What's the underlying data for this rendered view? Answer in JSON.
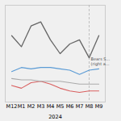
{
  "chart_data": {
    "type": "line",
    "xlabel": "2024",
    "categories": [
      "M12",
      "M1",
      "M2",
      "M3",
      "M4",
      "M5",
      "M6",
      "M7",
      "M8",
      "M9"
    ],
    "series": [
      {
        "color": "#666666",
        "values": [
          68,
          60,
          75,
          78,
          65,
          55,
          62,
          65,
          52,
          68
        ]
      },
      {
        "color": "#5b9bd5",
        "values": [
          42,
          45,
          44,
          45,
          45,
          44,
          43,
          40,
          43,
          44
        ]
      },
      {
        "color": "#aaaaaa",
        "values": [
          37,
          36,
          36,
          35,
          35,
          35,
          34,
          33,
          33,
          33
        ]
      },
      {
        "color": "#d96060",
        "values": [
          32,
          30,
          34,
          35,
          33,
          30,
          28,
          27,
          28,
          28
        ]
      }
    ],
    "annotations": [
      {
        "text": "Bears S...\n(right a...",
        "x": "M8",
        "y": 53
      }
    ],
    "ylim": [
      20,
      90
    ],
    "tick_labels": "x",
    "grid": false
  }
}
